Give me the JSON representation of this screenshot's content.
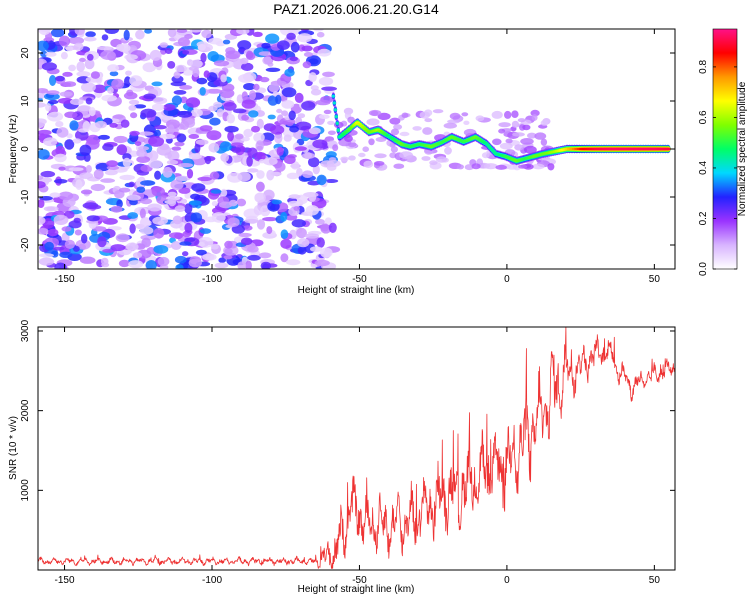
{
  "title": "PAZ1.2026.006.21.20.G14",
  "chart_data": [
    {
      "type": "heatmap",
      "xlabel": "Height of straight line (km)",
      "ylabel": "Frequency (Hz)",
      "xlim": [
        -159,
        57
      ],
      "ylim": [
        -25,
        25
      ],
      "xticks": [
        -150,
        -100,
        -50,
        0,
        50
      ],
      "yticks": [
        -20,
        -10,
        0,
        10,
        20
      ],
      "xtick_labels": [
        "-150",
        "-100",
        "-50",
        "0",
        "50"
      ],
      "ytick_labels": [
        "-20",
        "-10",
        "0",
        "10",
        "20"
      ],
      "colorbar": {
        "label": "Normalized spectral amplitude",
        "range": [
          0,
          0.95
        ],
        "ticks": [
          "0.0",
          "0.2",
          "0.4",
          "0.6",
          "0.8"
        ],
        "tick_values": [
          0,
          0.2,
          0.4,
          0.6,
          0.8
        ],
        "colors": [
          "#ffffff",
          "#d8b4ff",
          "#9a33ff",
          "#2222ff",
          "#00d8ff",
          "#00ff66",
          "#80ff00",
          "#ffff00",
          "#ff9900",
          "#ff0000",
          "#ff1188"
        ]
      },
      "noise_region": {
        "x_range": [
          -159,
          -59
        ],
        "y_range": [
          -25,
          25
        ],
        "amplitude": [
          0.05,
          0.35
        ]
      },
      "ridge": [
        {
          "x": -59,
          "y": 11,
          "amp": 0.4
        },
        {
          "x": -57,
          "y": 2.5,
          "amp": 0.45
        },
        {
          "x": -53,
          "y": 4.5,
          "amp": 0.55
        },
        {
          "x": -51,
          "y": 5.5,
          "amp": 0.65
        },
        {
          "x": -47,
          "y": 3.5,
          "amp": 0.55
        },
        {
          "x": -44,
          "y": 4,
          "amp": 0.6
        },
        {
          "x": -40,
          "y": 2.5,
          "amp": 0.45
        },
        {
          "x": -36,
          "y": 1,
          "amp": 0.55
        },
        {
          "x": -33,
          "y": 0.5,
          "amp": 0.5
        },
        {
          "x": -30,
          "y": 1,
          "amp": 0.5
        },
        {
          "x": -26,
          "y": 0.5,
          "amp": 0.55
        },
        {
          "x": -22,
          "y": 1.5,
          "amp": 0.5
        },
        {
          "x": -19,
          "y": 2.5,
          "amp": 0.55
        },
        {
          "x": -15,
          "y": 1.5,
          "amp": 0.5
        },
        {
          "x": -11,
          "y": 2.5,
          "amp": 0.55
        },
        {
          "x": -7,
          "y": 1,
          "amp": 0.45
        },
        {
          "x": -4,
          "y": -1,
          "amp": 0.45
        },
        {
          "x": -1,
          "y": -1.5,
          "amp": 0.5
        },
        {
          "x": 3,
          "y": -2.5,
          "amp": 0.55
        },
        {
          "x": 6,
          "y": -2,
          "amp": 0.5
        },
        {
          "x": 9,
          "y": -1.5,
          "amp": 0.55
        },
        {
          "x": 12,
          "y": -1,
          "amp": 0.55
        },
        {
          "x": 16,
          "y": -0.5,
          "amp": 0.6
        },
        {
          "x": 20,
          "y": 0,
          "amp": 0.7
        },
        {
          "x": 25,
          "y": 0,
          "amp": 0.85
        },
        {
          "x": 30,
          "y": 0,
          "amp": 0.9
        },
        {
          "x": 35,
          "y": 0,
          "amp": 0.92
        },
        {
          "x": 40,
          "y": 0,
          "amp": 0.92
        },
        {
          "x": 45,
          "y": 0,
          "amp": 0.92
        },
        {
          "x": 50,
          "y": 0,
          "amp": 0.92
        },
        {
          "x": 55,
          "y": 0,
          "amp": 0.9
        }
      ]
    },
    {
      "type": "line",
      "xlabel": "Height of straight line (km)",
      "ylabel": "SNR (10 * v/v)",
      "xlim": [
        -159,
        57
      ],
      "ylim": [
        0,
        3050
      ],
      "xticks": [
        -150,
        -100,
        -50,
        0,
        50
      ],
      "yticks": [
        1000,
        2000,
        3000
      ],
      "xtick_labels": [
        "-150",
        "-100",
        "-50",
        "0",
        "50"
      ],
      "ytick_labels": [
        "1000",
        "2000",
        "3000"
      ],
      "series": [
        {
          "name": "SNR",
          "color": "#ee3333",
          "envelope": {
            "x": [
              -159,
              -100,
              -65,
              -58,
              -55,
              -53,
              -50,
              -47,
              -45,
              -40,
              -35,
              -30,
              -25,
              -20,
              -15,
              -10,
              -5,
              0,
              5,
              10,
              15,
              20,
              25,
              30,
              35,
              38,
              42,
              45,
              50,
              57
            ],
            "y": [
              110,
              110,
              110,
              200,
              550,
              800,
              700,
              550,
              600,
              550,
              600,
              700,
              850,
              950,
              1000,
              1150,
              1300,
              1350,
              1550,
              1800,
              2200,
              2500,
              2550,
              2700,
              2750,
              2500,
              2300,
              2350,
              2450,
              2550
            ]
          },
          "spread": {
            "x": [
              -159,
              -65,
              -57,
              -50,
              -40,
              -20,
              0,
              15,
              25,
              35,
              45,
              57
            ],
            "y": [
              60,
              70,
              500,
              500,
              500,
              650,
              750,
              800,
              350,
              250,
              200,
              150
            ]
          }
        }
      ]
    }
  ]
}
